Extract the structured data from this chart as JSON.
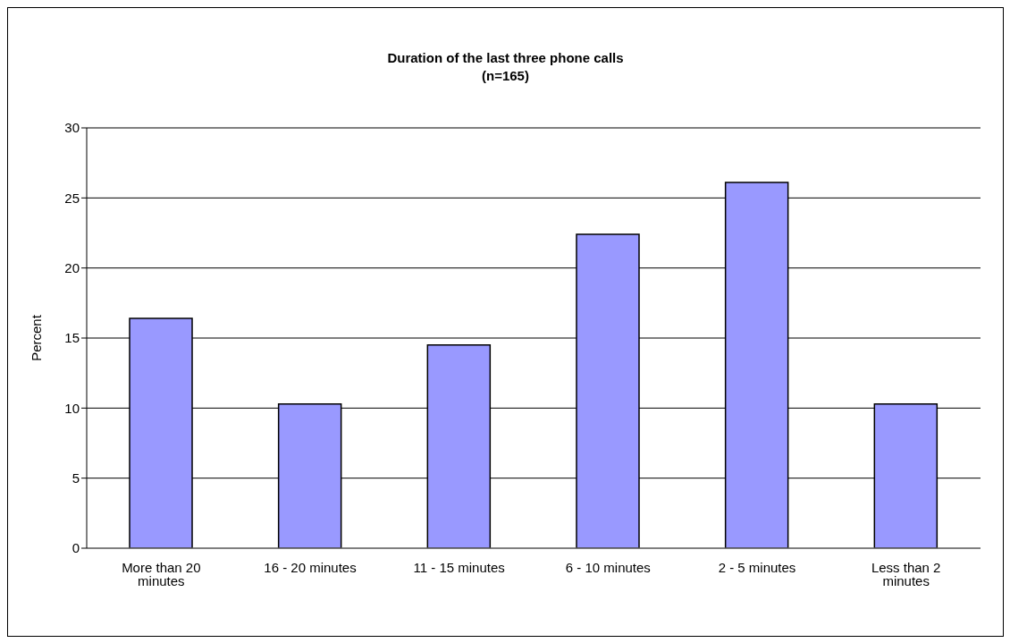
{
  "chart_data": {
    "type": "bar",
    "title": "Duration of the last three phone calls",
    "subtitle": "(n=165)",
    "ylabel": "Percent",
    "categories": [
      "More than 20 minutes",
      "16 - 20 minutes",
      "11 - 15 minutes",
      "6 - 10 minutes",
      "2 - 5 minutes",
      "Less than 2 minutes"
    ],
    "values": [
      16.4,
      10.3,
      14.5,
      22.4,
      26.1,
      10.3
    ],
    "color": "#9999ff",
    "ylim": [
      0,
      30
    ],
    "yticks": [
      0,
      5,
      10,
      15,
      20,
      25,
      30
    ],
    "grid": "y",
    "legend": false
  }
}
